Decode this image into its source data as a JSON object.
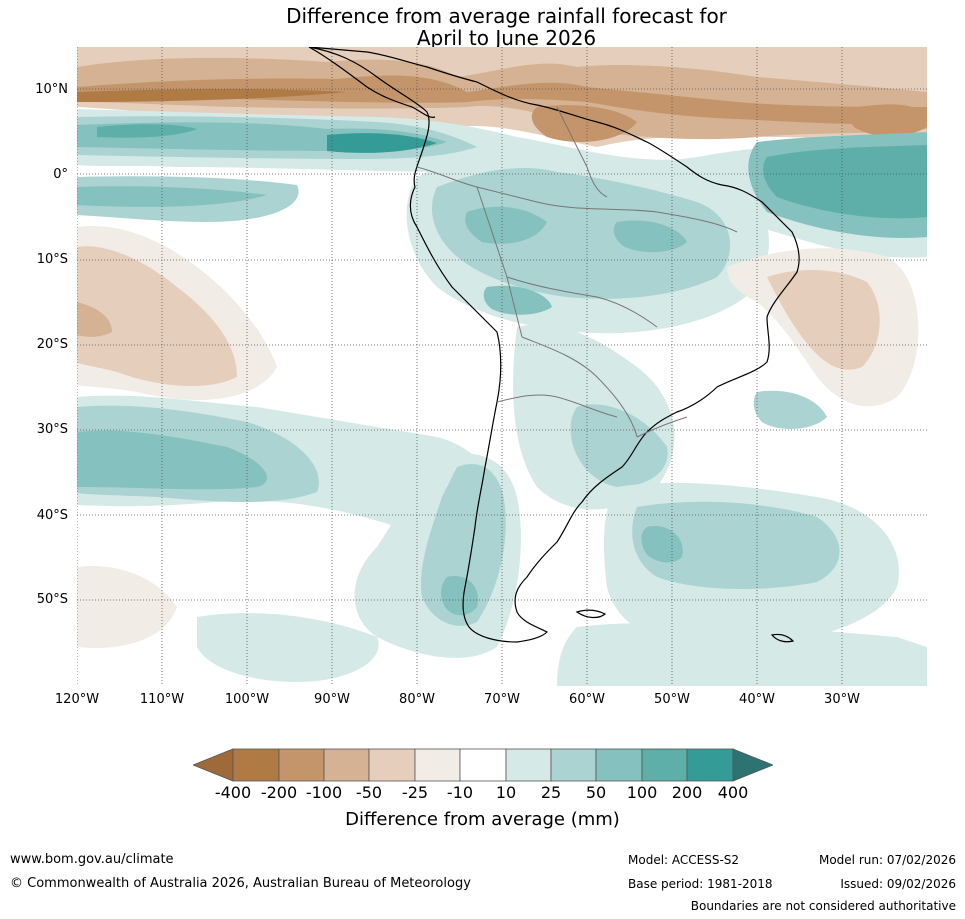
{
  "title": {
    "line1": "Difference from average rainfall forecast for",
    "line2": "April to June 2026"
  },
  "map": {
    "region": "South America",
    "lat_labels": [
      "10°N",
      "0°",
      "10°S",
      "20°S",
      "30°S",
      "40°S",
      "50°S"
    ],
    "lon_labels": [
      "120°W",
      "110°W",
      "100°W",
      "90°W",
      "80°W",
      "70°W",
      "60°W",
      "50°W",
      "40°W",
      "30°W"
    ],
    "gridlines": "dotted"
  },
  "colorbar": {
    "title": "Difference from average (mm)",
    "ticks": [
      "-400",
      "-200",
      "-100",
      "-50",
      "-25",
      "-10",
      "10",
      "25",
      "50",
      "100",
      "200",
      "400"
    ],
    "colors": {
      "lt_-400": "#a0693a",
      "-400_-200": "#b07a45",
      "-200_-100": "#c4956b",
      "-100_-50": "#d4b293",
      "-50_-25": "#e5cfbc",
      "-25_-10": "#f2ece6",
      "-10_10": "#ffffff",
      "10_25": "#d5e9e7",
      "25_50": "#aad3d1",
      "50_100": "#85c1be",
      "100_200": "#5eaeaa",
      "200_400": "#349b97",
      "gt_400": "#2c7372"
    }
  },
  "footer": {
    "website": "www.bom.gov.au/climate",
    "copyright": "© Commonwealth of Australia 2026, Australian Bureau of Meteorology",
    "model": "Model: ACCESS-S2",
    "model_run": "Model run: 07/02/2026",
    "base_period": "Base period: 1981-2018",
    "issued": "Issued: 09/02/2026",
    "disclaimer": "Boundaries are not considered authoritative"
  }
}
